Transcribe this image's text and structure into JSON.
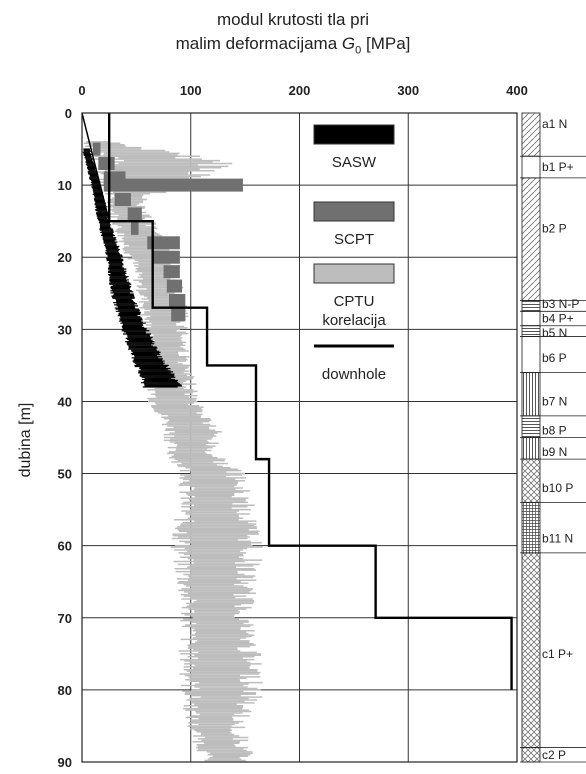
{
  "chart_data": {
    "type": "line",
    "title_line1": "modul krutosti tla pri",
    "title_line2_prefix": "malim deformacijama ",
    "title_symbol": "G",
    "title_subscript": "0",
    "title_unit": " [MPa]",
    "ylabel": "dubina [m]",
    "xlim": [
      0,
      400
    ],
    "ylim": [
      0,
      90
    ],
    "y_inverted": true,
    "x_axis_position": "top",
    "grid": true,
    "x_ticks": [
      0,
      100,
      200,
      300,
      400
    ],
    "y_ticks": [
      0,
      10,
      20,
      30,
      40,
      50,
      60,
      70,
      80,
      90
    ],
    "legend_placement": "inside-upper-center",
    "legend": [
      {
        "label": "SASW",
        "color": "#000000",
        "kind": "patch"
      },
      {
        "label": "SCPT",
        "color": "#707070",
        "kind": "patch"
      },
      {
        "label": "CPTU\nkorelacija",
        "color": "#bdbdbd",
        "kind": "patch"
      },
      {
        "label": "downhole",
        "color": "#000000",
        "kind": "line"
      }
    ],
    "series": [
      {
        "name": "downhole",
        "color": "#000000",
        "points": [
          [
            25,
            0
          ],
          [
            25,
            15
          ],
          [
            65,
            15
          ],
          [
            65,
            27
          ],
          [
            115,
            27
          ],
          [
            115,
            35
          ],
          [
            160,
            35
          ],
          [
            160,
            48
          ],
          [
            172,
            48
          ],
          [
            172,
            60
          ],
          [
            270,
            60
          ],
          [
            270,
            70
          ],
          [
            395,
            70
          ],
          [
            395,
            80
          ]
        ]
      },
      {
        "name": "SASW",
        "color": "#000000",
        "band_depth": [
          [
            5,
            0,
            8
          ],
          [
            10,
            8,
            18
          ],
          [
            15,
            14,
            26
          ],
          [
            20,
            22,
            38
          ],
          [
            25,
            26,
            48
          ],
          [
            28,
            32,
            55
          ],
          [
            32,
            40,
            68
          ],
          [
            36,
            50,
            85
          ],
          [
            38,
            55,
            95
          ]
        ]
      },
      {
        "name": "SCPT",
        "color": "#707070",
        "blocks": [
          [
            5,
            10,
            17
          ],
          [
            7,
            15,
            30
          ],
          [
            9,
            20,
            40
          ],
          [
            10,
            20,
            148
          ],
          [
            12,
            30,
            45
          ],
          [
            14,
            42,
            55
          ],
          [
            16,
            45,
            52
          ],
          [
            18,
            60,
            90
          ],
          [
            20,
            65,
            90
          ],
          [
            22,
            75,
            90
          ],
          [
            24,
            78,
            92
          ],
          [
            26,
            80,
            95
          ],
          [
            28,
            82,
            95
          ]
        ]
      },
      {
        "name": "CPTU korelacija",
        "color": "#bdbdbd",
        "band_depth": [
          [
            4,
            0,
            30
          ],
          [
            7,
            10,
            150
          ],
          [
            9,
            10,
            120
          ],
          [
            12,
            20,
            60
          ],
          [
            16,
            28,
            70
          ],
          [
            20,
            40,
            85
          ],
          [
            25,
            50,
            95
          ],
          [
            30,
            55,
            100
          ],
          [
            35,
            60,
            100
          ],
          [
            40,
            60,
            110
          ],
          [
            44,
            75,
            130
          ],
          [
            47,
            75,
            125
          ],
          [
            50,
            90,
            150
          ],
          [
            55,
            85,
            160
          ],
          [
            60,
            80,
            170
          ],
          [
            65,
            85,
            160
          ],
          [
            70,
            90,
            160
          ],
          [
            75,
            88,
            165
          ],
          [
            80,
            90,
            170
          ],
          [
            85,
            95,
            150
          ],
          [
            90,
            110,
            160
          ]
        ]
      }
    ],
    "soil_layers": [
      {
        "label": "a1  N",
        "depth_top": 0,
        "depth_bottom": 6,
        "pattern": "diag"
      },
      {
        "label": "b1  P+",
        "depth_top": 6,
        "depth_bottom": 9,
        "pattern": "plain"
      },
      {
        "label": "b2  P",
        "depth_top": 9,
        "depth_bottom": 26,
        "pattern": "diag"
      },
      {
        "label": "b3 N-P",
        "depth_top": 26,
        "depth_bottom": 27.5,
        "pattern": "hline"
      },
      {
        "label": "b4  P+",
        "depth_top": 27.5,
        "depth_bottom": 29.5,
        "pattern": "plain"
      },
      {
        "label": "b5  N",
        "depth_top": 29.5,
        "depth_bottom": 31,
        "pattern": "hline"
      },
      {
        "label": "b6  P",
        "depth_top": 31,
        "depth_bottom": 36,
        "pattern": "plain"
      },
      {
        "label": "b7  N",
        "depth_top": 36,
        "depth_bottom": 42,
        "pattern": "vline"
      },
      {
        "label": "b8  P",
        "depth_top": 42,
        "depth_bottom": 45,
        "pattern": "hline"
      },
      {
        "label": "b9  N",
        "depth_top": 45,
        "depth_bottom": 48,
        "pattern": "vline"
      },
      {
        "label": "b10 P",
        "depth_top": 48,
        "depth_bottom": 54,
        "pattern": "cross"
      },
      {
        "label": "b11 N",
        "depth_top": 54,
        "depth_bottom": 61,
        "pattern": "grid"
      },
      {
        "label": "c1  P+",
        "depth_top": 61,
        "depth_bottom": 88,
        "pattern": "cross"
      },
      {
        "label": "c2  P",
        "depth_top": 88,
        "depth_bottom": 90,
        "pattern": "cross"
      }
    ],
    "layer_label_depths": [
      1.5,
      7.5,
      16,
      26.5,
      28.5,
      30.5,
      34,
      40,
      44,
      47,
      52,
      59,
      75,
      89
    ]
  }
}
